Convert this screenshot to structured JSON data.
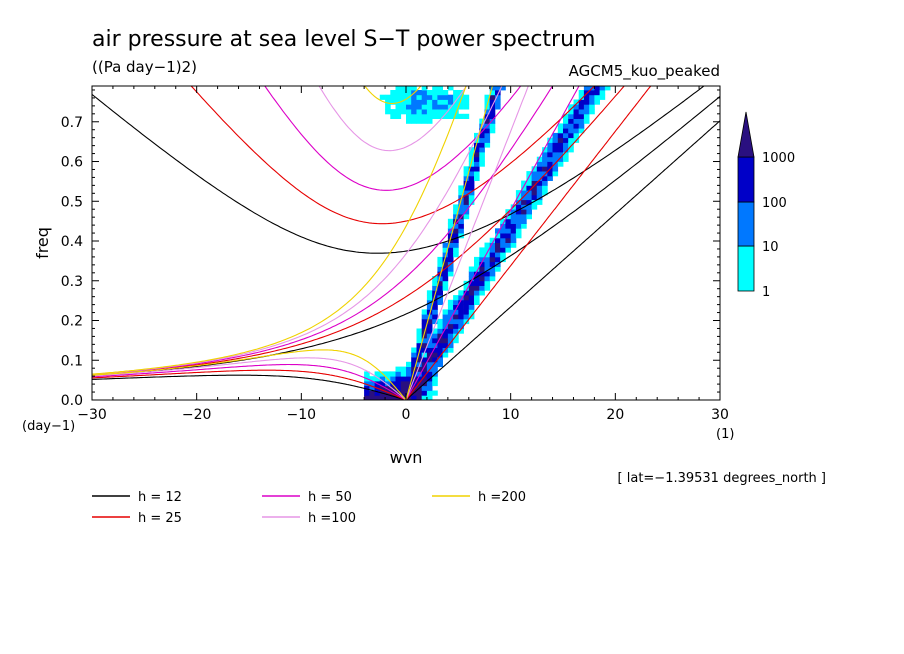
{
  "chart_data": {
    "type": "heatmap",
    "title": "air pressure at sea level S−T power spectrum",
    "units": "((Pa day−1)2)",
    "model": "AGCM5_kuo_peaked",
    "xlabel": "wvn",
    "ylabel": "freq",
    "x_unit": "(1)",
    "y_unit": "(day−1)",
    "annotation": "[ lat=−1.39531 degrees_north ]",
    "xlim": [
      -30,
      30
    ],
    "ylim": [
      0,
      0.79
    ],
    "x_ticks": [
      "−30",
      "−20",
      "−10",
      "0",
      "10",
      "20",
      "30"
    ],
    "y_ticks": [
      "0.0",
      "0.1",
      "0.2",
      "0.3",
      "0.4",
      "0.5",
      "0.6",
      "0.7"
    ],
    "colorbar": {
      "labels": [
        "1",
        "10",
        "100",
        "1000"
      ],
      "levels": [
        1,
        10,
        100,
        1000
      ],
      "colors": [
        "#00ffff",
        "#0078ff",
        "#0000c8",
        "#2a1080"
      ]
    },
    "series": [
      {
        "name": "h = 12",
        "h": 12,
        "color": "#000000"
      },
      {
        "name": "h = 25",
        "h": 25,
        "color": "#e60000"
      },
      {
        "name": "h = 50",
        "h": 50,
        "color": "#dc00c8"
      },
      {
        "name": "h =100",
        "h": 100,
        "color": "#e696e6"
      },
      {
        "name": "h =200",
        "h": 200,
        "color": "#f0d200"
      }
    ]
  }
}
